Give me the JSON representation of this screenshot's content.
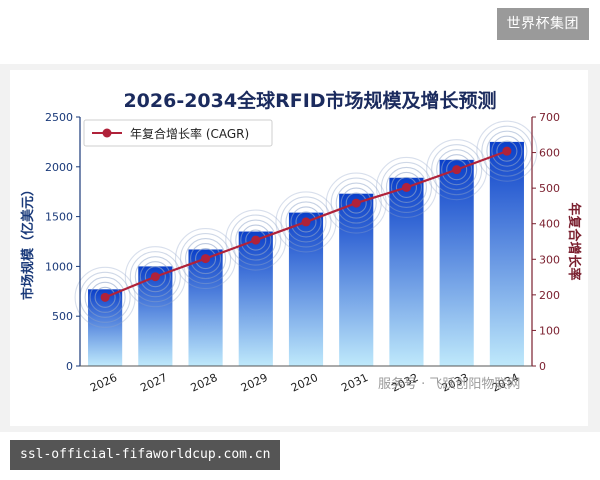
{
  "badge": "世界杯集团",
  "url": "ssl-official-fifaworldcup.com.cn",
  "watermark": "服务号 · 飞跃创阳物联网",
  "colors": {
    "bar_top": "#0a3fc9",
    "bar_bottom": "#bfe9fb",
    "line": "#b0223a",
    "title": "#1b2b5e",
    "left_axis": "#1a3a7a",
    "right_axis": "#7a1f2e"
  },
  "chart_data": {
    "type": "bar",
    "title": "2026-2034全球RFID市场规模及增长预测",
    "categories": [
      "2026",
      "2027",
      "2028",
      "2029",
      "2020",
      "2031",
      "2032",
      "2033",
      "2034"
    ],
    "series": [
      {
        "name": "",
        "axis": "left",
        "values": [
          770,
          1000,
          1170,
          1350,
          1540,
          1730,
          1890,
          2070,
          2250
        ]
      },
      {
        "name": "年复合增长率 (CAGR)",
        "type": "line",
        "axis": "right",
        "values": [
          193,
          251,
          302,
          354,
          405,
          458,
          502,
          552,
          604
        ]
      }
    ],
    "ylabel": "市场规模（亿美元）",
    "ylabel_right": "年复合增长率",
    "ylim": [
      0,
      2500
    ],
    "ylim_right": [
      0,
      700
    ],
    "yticks": [
      "0",
      "500",
      "1000",
      "1500",
      "2000",
      "2500"
    ],
    "yticks_right": [
      "0",
      "100",
      "200",
      "300",
      "400",
      "500",
      "600",
      "700"
    ],
    "legend": "top-left",
    "grid": false
  }
}
